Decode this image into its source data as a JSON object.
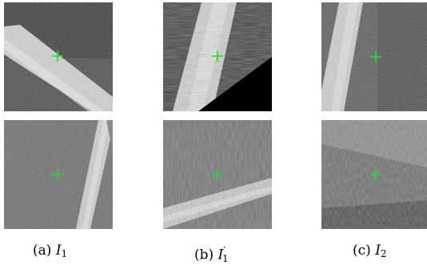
{
  "figure": {
    "captions": [
      {
        "label": "(a)",
        "symbol": "I",
        "sub": "1",
        "prime": ""
      },
      {
        "label": "(b)",
        "symbol": "I",
        "sub": "1",
        "prime": "′"
      },
      {
        "label": "(c)",
        "symbol": "I",
        "sub": "2",
        "prime": ""
      }
    ],
    "marker_color": "#22dd33"
  }
}
